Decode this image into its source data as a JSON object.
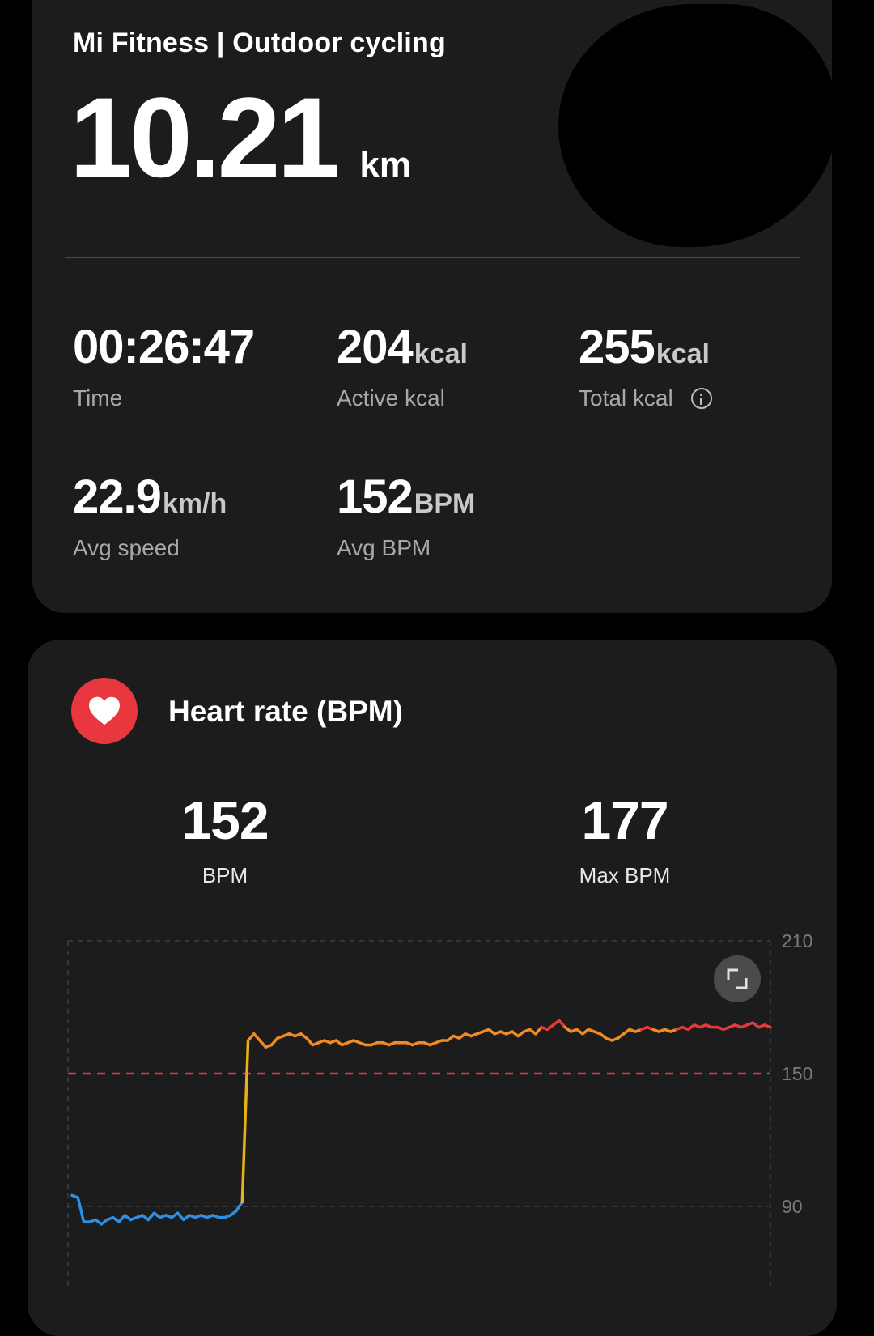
{
  "summary": {
    "title": "Mi Fitness | Outdoor cycling",
    "distance_value": "10.21",
    "distance_unit": "km",
    "stats": [
      {
        "value": "00:26:47",
        "unit": "",
        "label": "Time"
      },
      {
        "value": "204",
        "unit": "kcal",
        "label": "Active kcal"
      },
      {
        "value": "255",
        "unit": "kcal",
        "label": "Total kcal"
      },
      {
        "value": "22.9",
        "unit": "km/h",
        "label": "Avg speed"
      },
      {
        "value": "152",
        "unit": "BPM",
        "label": "Avg BPM"
      }
    ]
  },
  "heart_rate": {
    "title": "Heart rate (BPM)",
    "avg_value": "152",
    "avg_label": "BPM",
    "max_value": "177",
    "max_label": "Max BPM"
  },
  "colors": {
    "accent_red": "#e8373f",
    "zone_blue": "#2f8fe0",
    "zone_green": "#3fa34d",
    "zone_yellow": "#e6b219",
    "zone_orange": "#f08a24",
    "zone_red": "#e5393b"
  },
  "chart_data": {
    "type": "line",
    "ylabel": "",
    "xlabel": "",
    "y_ticks": [
      "210",
      "150",
      "90"
    ],
    "ylim": [
      75,
      210
    ],
    "reference_line": 150,
    "zones": [
      {
        "max": 115,
        "color": "#2f8fe0"
      },
      {
        "max": 125,
        "color": "#3fa34d"
      },
      {
        "max": 142,
        "color": "#e6b219"
      },
      {
        "max": 170,
        "color": "#f08a24"
      },
      {
        "max": 999,
        "color": "#e5393b"
      }
    ],
    "series": [
      {
        "values": [
          95,
          94,
          83,
          83,
          84,
          82,
          84,
          85,
          83,
          86,
          84,
          85,
          86,
          84,
          87,
          85,
          86,
          85,
          87,
          84,
          86,
          85,
          86,
          85,
          86,
          85,
          85,
          86,
          88,
          92,
          165,
          168,
          165,
          162,
          163,
          166,
          167,
          168,
          167,
          168,
          166,
          163,
          164,
          165,
          164,
          165,
          163,
          164,
          165,
          164,
          163,
          163,
          164,
          164,
          163,
          164,
          164,
          164,
          163,
          164,
          164,
          163,
          164,
          165,
          165,
          167,
          166,
          168,
          167,
          168,
          169,
          170,
          168,
          169,
          168,
          169,
          167,
          169,
          170,
          168,
          171,
          170,
          172,
          174,
          171,
          169,
          170,
          168,
          170,
          169,
          168,
          166,
          165,
          166,
          168,
          170,
          169,
          170,
          171,
          170,
          169,
          170,
          169,
          170,
          171,
          170,
          172,
          171,
          172,
          171,
          171,
          170,
          171,
          172,
          171,
          172,
          173,
          171,
          172,
          171
        ]
      }
    ]
  }
}
